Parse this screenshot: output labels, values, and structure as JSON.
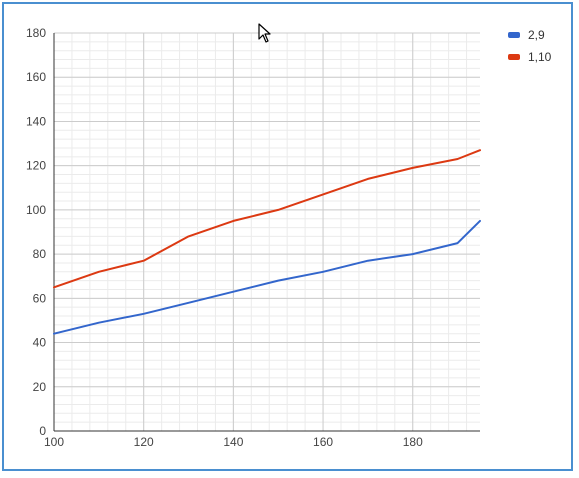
{
  "chart_data": {
    "type": "line",
    "title": "",
    "xlabel": "",
    "ylabel": "",
    "xlim": [
      100,
      195
    ],
    "ylim": [
      0,
      180
    ],
    "x_ticks": [
      100,
      120,
      140,
      160,
      180
    ],
    "y_ticks": [
      0,
      20,
      40,
      60,
      80,
      100,
      120,
      140,
      160,
      180
    ],
    "x": [
      100,
      110,
      120,
      130,
      140,
      150,
      160,
      170,
      180,
      190,
      195
    ],
    "grid": true,
    "legend_position": "top-right",
    "series": [
      {
        "name": "2,9",
        "color": "#3366cc",
        "values": [
          44,
          49,
          53,
          58,
          63,
          68,
          72,
          77,
          80,
          85,
          95
        ]
      },
      {
        "name": "1,10",
        "color": "#dc3912",
        "values": [
          65,
          72,
          77,
          88,
          95,
          100,
          107,
          114,
          119,
          123,
          127
        ]
      }
    ]
  },
  "colors": {
    "frame_border": "#4a8fd0",
    "grid_major": "#cccccc",
    "grid_minor": "#ebebeb",
    "axis": "#333333"
  },
  "icons": {
    "cursor": "mouse-pointer-icon"
  }
}
